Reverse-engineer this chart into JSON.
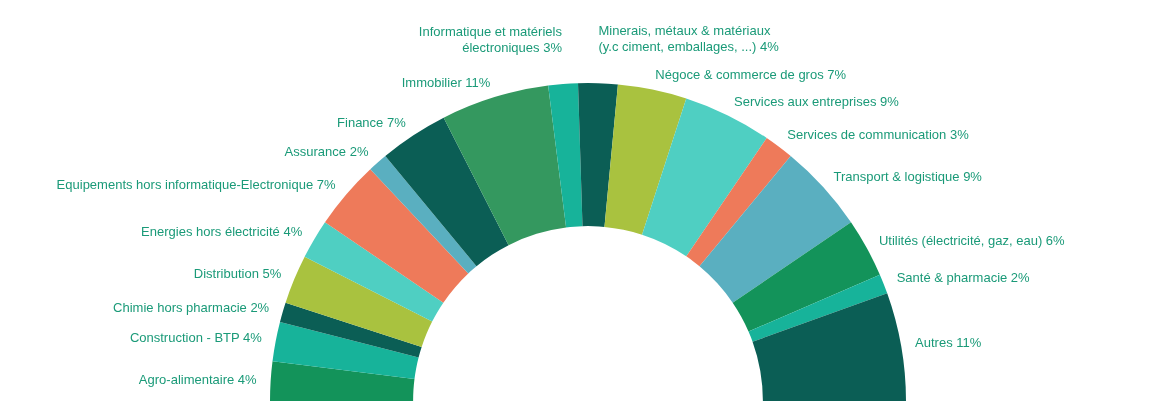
{
  "chart_data": {
    "type": "donut",
    "categories": [
      "Agro-alimentaire",
      "Construction - BTP",
      "Chimie hors pharmacie",
      "Distribution",
      "Energies hors électricité",
      "Equipements hors informatique-Electronique",
      "Assurance",
      "Finance",
      "Immobilier",
      "Informatique et matériels électroniques",
      "Minerais, métaux & matériaux (y.c ciment, emballages, ...)",
      "Négoce & commerce de gros",
      "Services aux entreprises",
      "Services de communication",
      "Transport & logistique",
      "Utilités (électricité, gaz, eau)",
      "Santé & pharmacie",
      "Autres"
    ],
    "values": [
      4,
      4,
      2,
      5,
      4,
      7,
      2,
      7,
      11,
      3,
      4,
      7,
      9,
      3,
      9,
      6,
      2,
      11
    ],
    "value_labels": [
      "4%",
      "4%",
      "2%",
      "5%",
      "4%",
      "7%",
      "2%",
      "7%",
      "11%",
      "3%",
      "4%",
      "7%",
      "9%",
      "3%",
      "9%",
      "6%",
      "2%",
      "11%"
    ],
    "colors": [
      "#13935a",
      "#17b39a",
      "#0b5e55",
      "#a9c23f",
      "#4fcfc2",
      "#ee7a5a",
      "#5aafc0",
      "#0b5e55",
      "#34985f",
      "#17b39a",
      "#0b5e55",
      "#a9c23f",
      "#4fcfc2",
      "#ee7a5a",
      "#5aafc0",
      "#13935a",
      "#17b39a",
      "#0b5e55"
    ],
    "legend": false
  }
}
